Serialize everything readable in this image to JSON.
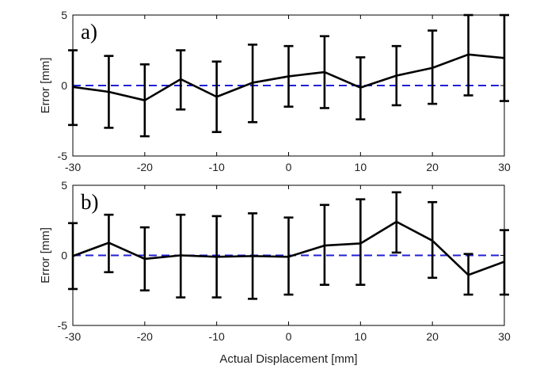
{
  "chart_data": [
    {
      "type": "line",
      "panel_label": "a)",
      "xlabel": "Actual Displacement [mm]",
      "ylabel": "Error [mm]",
      "xlim": [
        -30,
        30
      ],
      "ylim": [
        -5,
        5
      ],
      "xticks": [
        -30,
        -20,
        -10,
        0,
        10,
        20,
        30
      ],
      "yticks": [
        -5,
        0,
        5
      ],
      "reference_line": {
        "y": 0,
        "style": "dashed",
        "color": "#1f1fd6"
      },
      "line_color": "#000000",
      "series": [
        {
          "x": [
            -30,
            -25,
            -20,
            -15,
            -10,
            -5,
            0,
            5,
            10,
            15,
            20,
            25,
            30
          ],
          "y": [
            -0.1,
            -0.45,
            -1.05,
            0.45,
            -0.8,
            0.2,
            0.65,
            0.95,
            -0.15,
            0.7,
            1.25,
            2.2,
            1.95
          ],
          "err_low": [
            -2.8,
            -3.0,
            -3.6,
            -1.7,
            -3.3,
            -2.6,
            -1.5,
            -1.6,
            -2.4,
            -1.4,
            -1.3,
            -0.7,
            -1.1
          ],
          "err_high": [
            2.5,
            2.1,
            1.5,
            2.5,
            1.7,
            2.9,
            2.8,
            3.5,
            2.0,
            2.8,
            3.9,
            5.0,
            5.0
          ]
        }
      ]
    },
    {
      "type": "line",
      "panel_label": "b)",
      "xlabel": "Actual Displacement [mm]",
      "ylabel": "Error [mm]",
      "xlim": [
        -30,
        30
      ],
      "ylim": [
        -5,
        5
      ],
      "xticks": [
        -30,
        -20,
        -10,
        0,
        10,
        20,
        30
      ],
      "yticks": [
        -5,
        0,
        5
      ],
      "reference_line": {
        "y": 0,
        "style": "dashed",
        "color": "#1f1fd6"
      },
      "line_color": "#000000",
      "series": [
        {
          "x": [
            -30,
            -25,
            -20,
            -15,
            -10,
            -5,
            0,
            5,
            10,
            15,
            20,
            25,
            30
          ],
          "y": [
            -0.05,
            0.9,
            -0.25,
            0.0,
            -0.1,
            -0.05,
            -0.1,
            0.7,
            0.85,
            2.4,
            1.05,
            -1.4,
            -0.45
          ],
          "err_low": [
            -2.4,
            -1.2,
            -2.5,
            -3.0,
            -3.0,
            -3.1,
            -2.8,
            -2.1,
            -2.1,
            0.2,
            -1.6,
            -2.8,
            -2.8
          ],
          "err_high": [
            2.3,
            2.9,
            2.0,
            2.9,
            2.8,
            3.0,
            2.7,
            3.6,
            4.0,
            4.5,
            3.8,
            0.1,
            1.8
          ]
        }
      ]
    }
  ]
}
